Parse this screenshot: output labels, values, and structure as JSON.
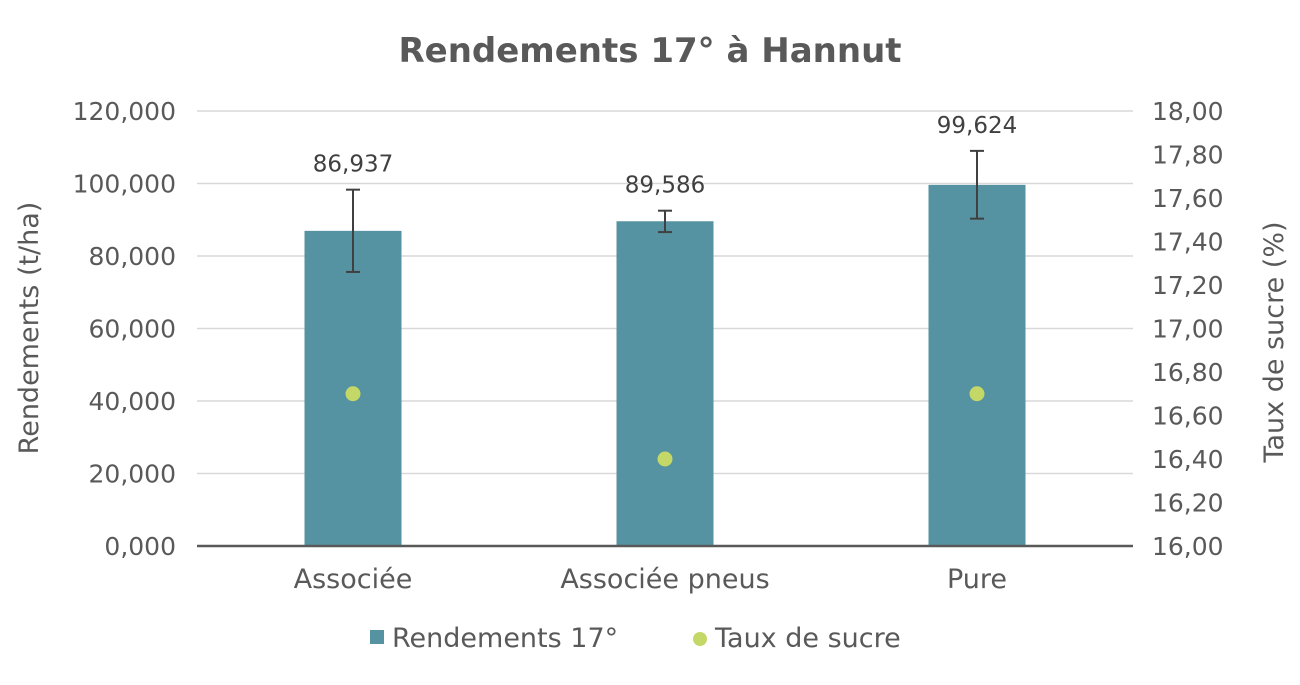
{
  "chart_data": {
    "type": "bar",
    "title": "Rendements 17° à Hannut",
    "categories": [
      "Associée",
      "Associée pneus",
      "Pure"
    ],
    "series": [
      {
        "name": "Rendements 17°",
        "kind": "bar",
        "axis": "left",
        "values": [
          86.937,
          89.586,
          99.624
        ],
        "value_labels": [
          "86,937",
          "89,586",
          "99,624"
        ],
        "error_bars": [
          [
            75.6,
            98.3
          ],
          [
            86.6,
            92.5
          ],
          [
            90.3,
            109.0
          ]
        ]
      },
      {
        "name": "Taux de sucre",
        "kind": "point",
        "axis": "right",
        "values": [
          16.7,
          16.4,
          16.7
        ]
      }
    ],
    "ylabel": "Rendements (t/ha)",
    "ylabel_right": "Taux de sucre (%)",
    "ylim": [
      0,
      120
    ],
    "ylim_right": [
      16.0,
      18.0
    ],
    "yticks": [
      "0,000",
      "20,000",
      "40,000",
      "60,000",
      "80,000",
      "100,000",
      "120,000"
    ],
    "yticks_right": [
      "16,00",
      "16,20",
      "16,40",
      "16,60",
      "16,80",
      "17,00",
      "17,20",
      "17,40",
      "17,60",
      "17,80",
      "18,00"
    ],
    "grid": true,
    "legend_position": "bottom",
    "colors": {
      "bar": "#5592a2",
      "point": "#c4d867",
      "grid": "#d9d9d9",
      "axis": "#595959",
      "error": "#404040"
    }
  }
}
